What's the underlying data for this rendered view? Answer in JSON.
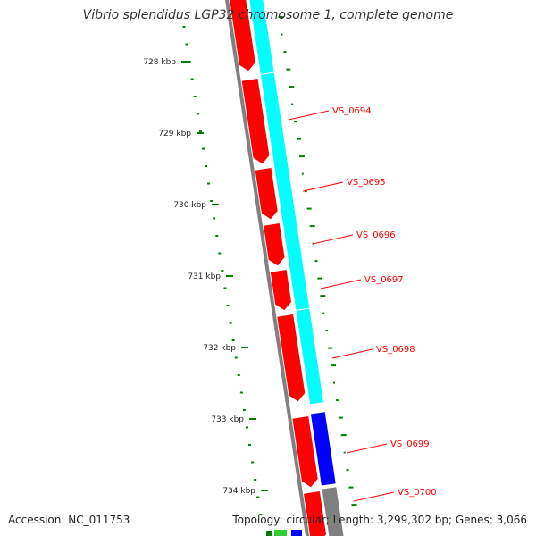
{
  "title": "Vibrio splendidus LGP32 chromosome 1, complete genome",
  "accession": "Accession: NC_011753",
  "topology": "Topology: circular; Length: 3,299,302 bp; Genes: 3,066",
  "colors": {
    "background": "#ffffff",
    "backbone": "#808080",
    "cds_forward": "#ff0000",
    "cds_reverse_cyan": "#00ffff",
    "cds_reverse_blue": "#0000ff",
    "cds_reverse_gray": "#808080",
    "cds_green": "#33cc33",
    "gc_skew": "#008000",
    "gene_label": "#ff0000"
  },
  "kbp_ticks": [
    "728 kbp",
    "729 kbp",
    "730 kbp",
    "731 kbp",
    "732 kbp",
    "733 kbp",
    "734 kbp"
  ],
  "gene_labels": [
    "VS_0694",
    "VS_0695",
    "VS_0696",
    "VS_0697",
    "VS_0698",
    "VS_0699",
    "VS_0700"
  ]
}
